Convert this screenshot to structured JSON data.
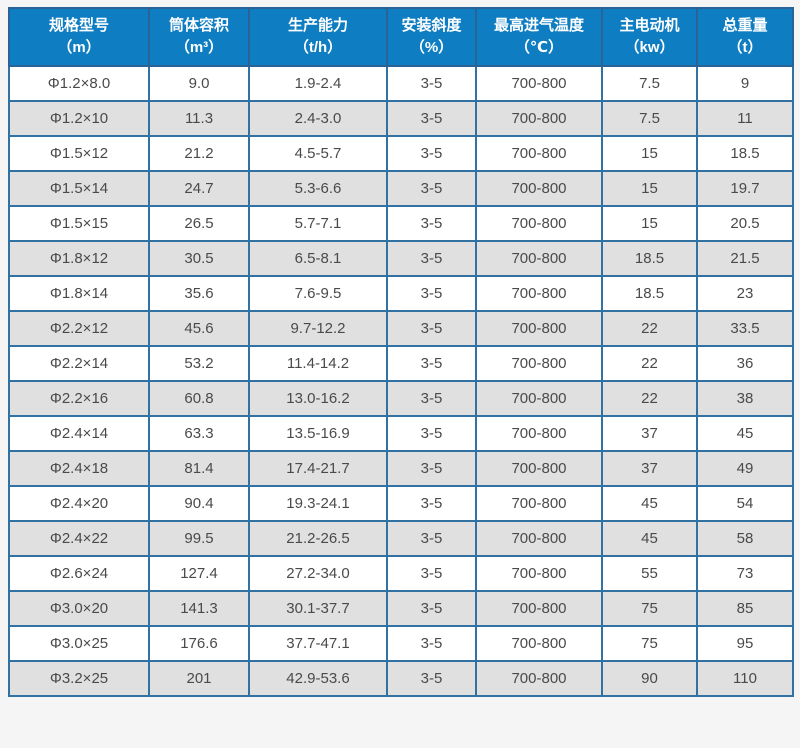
{
  "chart_data": {
    "type": "table",
    "title": "",
    "columns": [
      {
        "title": "规格型号",
        "unit": "（m）"
      },
      {
        "title": "筒体容积",
        "unit": "（m³）"
      },
      {
        "title": "生产能力",
        "unit": "（t/h）"
      },
      {
        "title": "安装斜度",
        "unit": "（%）"
      },
      {
        "title": "最高进气温度",
        "unit": "（℃）"
      },
      {
        "title": "主电动机",
        "unit": "（kw）"
      },
      {
        "title": "总重量",
        "unit": "（t）"
      }
    ],
    "rows": [
      [
        "Φ1.2×8.0",
        "9.0",
        "1.9-2.4",
        "3-5",
        "700-800",
        "7.5",
        "9"
      ],
      [
        "Φ1.2×10",
        "11.3",
        "2.4-3.0",
        "3-5",
        "700-800",
        "7.5",
        "11"
      ],
      [
        "Φ1.5×12",
        "21.2",
        "4.5-5.7",
        "3-5",
        "700-800",
        "15",
        "18.5"
      ],
      [
        "Φ1.5×14",
        "24.7",
        "5.3-6.6",
        "3-5",
        "700-800",
        "15",
        "19.7"
      ],
      [
        "Φ1.5×15",
        "26.5",
        "5.7-7.1",
        "3-5",
        "700-800",
        "15",
        "20.5"
      ],
      [
        "Φ1.8×12",
        "30.5",
        "6.5-8.1",
        "3-5",
        "700-800",
        "18.5",
        "21.5"
      ],
      [
        "Φ1.8×14",
        "35.6",
        "7.6-9.5",
        "3-5",
        "700-800",
        "18.5",
        "23"
      ],
      [
        "Φ2.2×12",
        "45.6",
        "9.7-12.2",
        "3-5",
        "700-800",
        "22",
        "33.5"
      ],
      [
        "Φ2.2×14",
        "53.2",
        "11.4-14.2",
        "3-5",
        "700-800",
        "22",
        "36"
      ],
      [
        "Φ2.2×16",
        "60.8",
        "13.0-16.2",
        "3-5",
        "700-800",
        "22",
        "38"
      ],
      [
        "Φ2.4×14",
        "63.3",
        "13.5-16.9",
        "3-5",
        "700-800",
        "37",
        "45"
      ],
      [
        "Φ2.4×18",
        "81.4",
        "17.4-21.7",
        "3-5",
        "700-800",
        "37",
        "49"
      ],
      [
        "Φ2.4×20",
        "90.4",
        "19.3-24.1",
        "3-5",
        "700-800",
        "45",
        "54"
      ],
      [
        "Φ2.4×22",
        "99.5",
        "21.2-26.5",
        "3-5",
        "700-800",
        "45",
        "58"
      ],
      [
        "Φ2.6×24",
        "127.4",
        "27.2-34.0",
        "3-5",
        "700-800",
        "55",
        "73"
      ],
      [
        "Φ3.0×20",
        "141.3",
        "30.1-37.7",
        "3-5",
        "700-800",
        "75",
        "85"
      ],
      [
        "Φ3.0×25",
        "176.6",
        "37.7-47.1",
        "3-5",
        "700-800",
        "75",
        "95"
      ],
      [
        "Φ3.2×25",
        "201",
        "42.9-53.6",
        "3-5",
        "700-800",
        "90",
        "110"
      ]
    ],
    "layout": {
      "grid": "on",
      "header_rows": 1,
      "row_striping": "even rows shaded"
    }
  },
  "colors": {
    "header_bg": "#0e7dc2",
    "header_text": "#ffffff",
    "header_border": "#2a6496",
    "outer_border": "#1d4e77",
    "cell_border": "#3172a3",
    "cell_text": "#4a4a4a",
    "row_bg": "#ffffff",
    "row_alt_bg": "#e0e0e0",
    "page_bg": "#f5f5f5"
  }
}
